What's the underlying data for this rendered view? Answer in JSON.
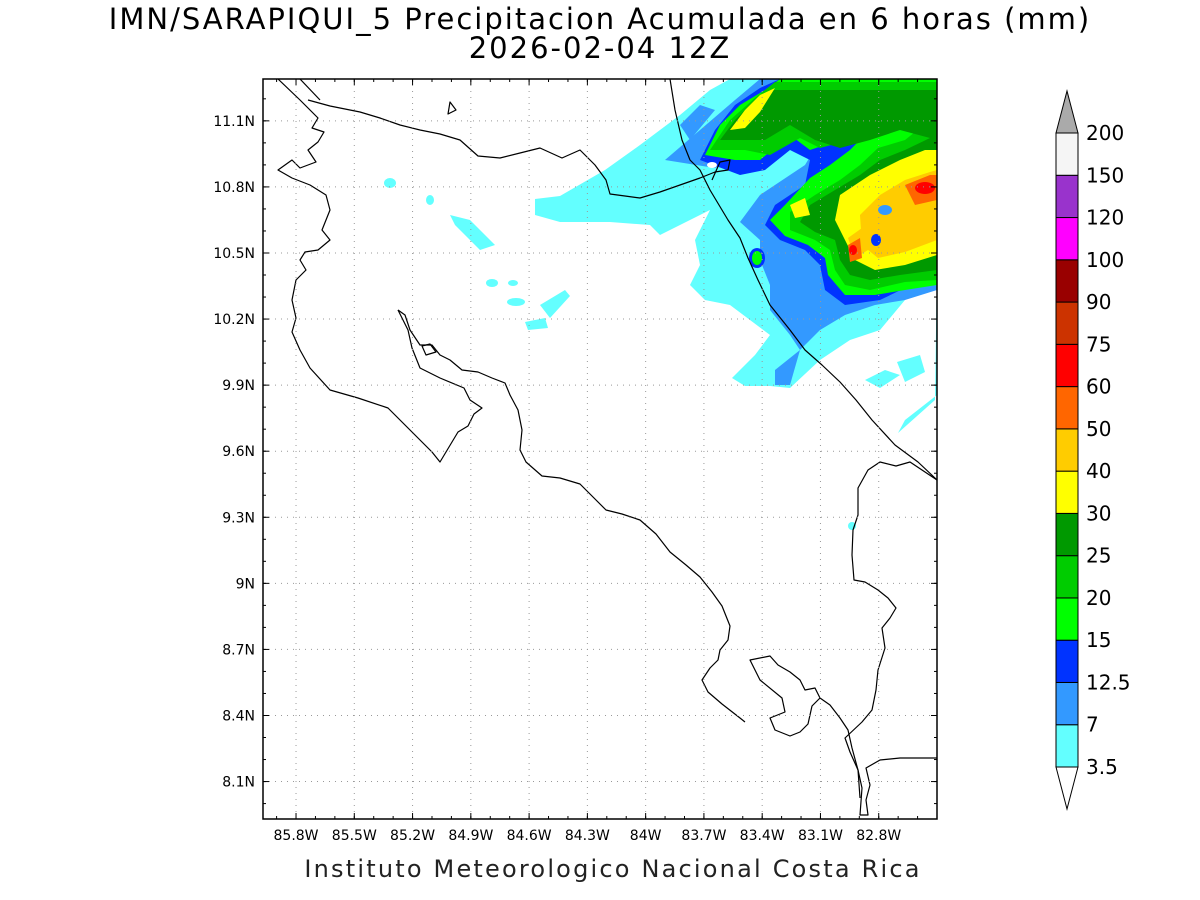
{
  "title_line1": "IMN/SARAPIQUI_5 Precipitacion Acumulada en 6 horas (mm)",
  "title_line2": "2026-02-04 12Z",
  "footer": "Instituto Meteorologico Nacional Costa Rica",
  "map": {
    "lon_labels": [
      "85.8W",
      "85.5W",
      "85.2W",
      "84.9W",
      "84.6W",
      "84.3W",
      "84W",
      "83.7W",
      "83.4W",
      "83.1W",
      "82.8W"
    ],
    "lon_values": [
      -85.8,
      -85.5,
      -85.2,
      -84.9,
      -84.6,
      -84.3,
      -84.0,
      -83.7,
      -83.4,
      -83.1,
      -82.8
    ],
    "lat_labels": [
      "11.1N",
      "10.8N",
      "10.5N",
      "10.2N",
      "9.9N",
      "9.6N",
      "9.3N",
      "9N",
      "8.7N",
      "8.4N",
      "8.1N"
    ],
    "lat_values": [
      11.1,
      10.8,
      10.5,
      10.2,
      9.9,
      9.6,
      9.3,
      9.0,
      8.7,
      8.4,
      8.1
    ],
    "lon_range": [
      -85.97,
      -82.5
    ],
    "lat_range": [
      7.93,
      11.29
    ],
    "grid": "dotted"
  },
  "colorbar": {
    "labels": [
      "3.5",
      "7",
      "12.5",
      "15",
      "20",
      "25",
      "30",
      "40",
      "50",
      "60",
      "75",
      "90",
      "100",
      "120",
      "150",
      "200"
    ],
    "colors": [
      "#63ffff",
      "#3399ff",
      "#0033ff",
      "#00ff00",
      "#00cc00",
      "#009900",
      "#ffff00",
      "#ffcc00",
      "#ff6600",
      "#ff0000",
      "#cc3300",
      "#990000",
      "#ff00ff",
      "#9933cc",
      "#f5f5f5",
      "#aaaaaa"
    ],
    "under_color": "#ffffff",
    "over_color": "#aaaaaa"
  }
}
